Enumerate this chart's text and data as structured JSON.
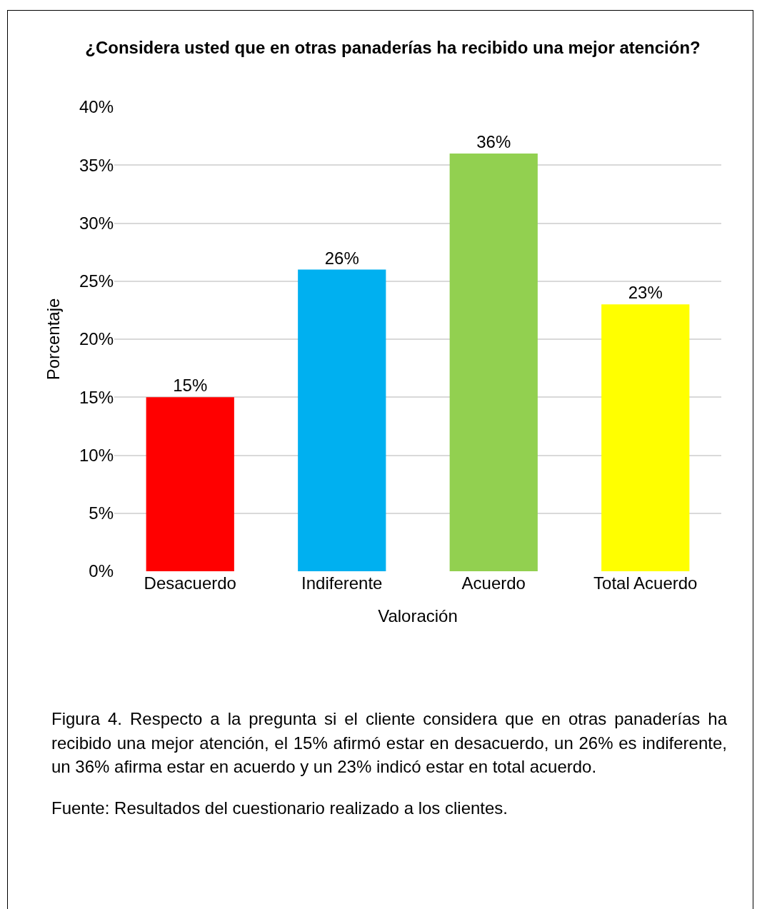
{
  "chart_data": {
    "type": "bar",
    "title": "¿Considera usted que en otras panaderías ha recibido una mejor atención?",
    "xlabel": "Valoración",
    "ylabel": "Porcentaje",
    "categories": [
      "Desacuerdo",
      "Indiferente",
      "Acuerdo",
      "Total Acuerdo"
    ],
    "values": [
      15,
      26,
      36,
      23
    ],
    "colors": [
      "#ff0000",
      "#00b0f0",
      "#92d050",
      "#ffff00"
    ],
    "value_labels": [
      "15%",
      "26%",
      "36%",
      "23%"
    ],
    "ylim": [
      0,
      40
    ],
    "yticks": [
      {
        "value": 0,
        "label": "0%"
      },
      {
        "value": 5,
        "label": "5%"
      },
      {
        "value": 10,
        "label": "10%"
      },
      {
        "value": 15,
        "label": "15%"
      },
      {
        "value": 20,
        "label": "20%"
      },
      {
        "value": 25,
        "label": "25%"
      },
      {
        "value": 30,
        "label": "30%"
      },
      {
        "value": 35,
        "label": "35%"
      },
      {
        "value": 40,
        "label": "40%"
      }
    ],
    "grid": "y",
    "annotations": [
      "Figura 4. Respecto a la pregunta si el cliente considera que en otras panaderías ha recibido una mejor atención, el 15% afirmó estar en desacuerdo, un 26% es indiferente, un 36% afirma estar en acuerdo y un 23% indicó estar en total acuerdo.",
      "Fuente: Resultados del cuestionario realizado a los clientes."
    ]
  }
}
